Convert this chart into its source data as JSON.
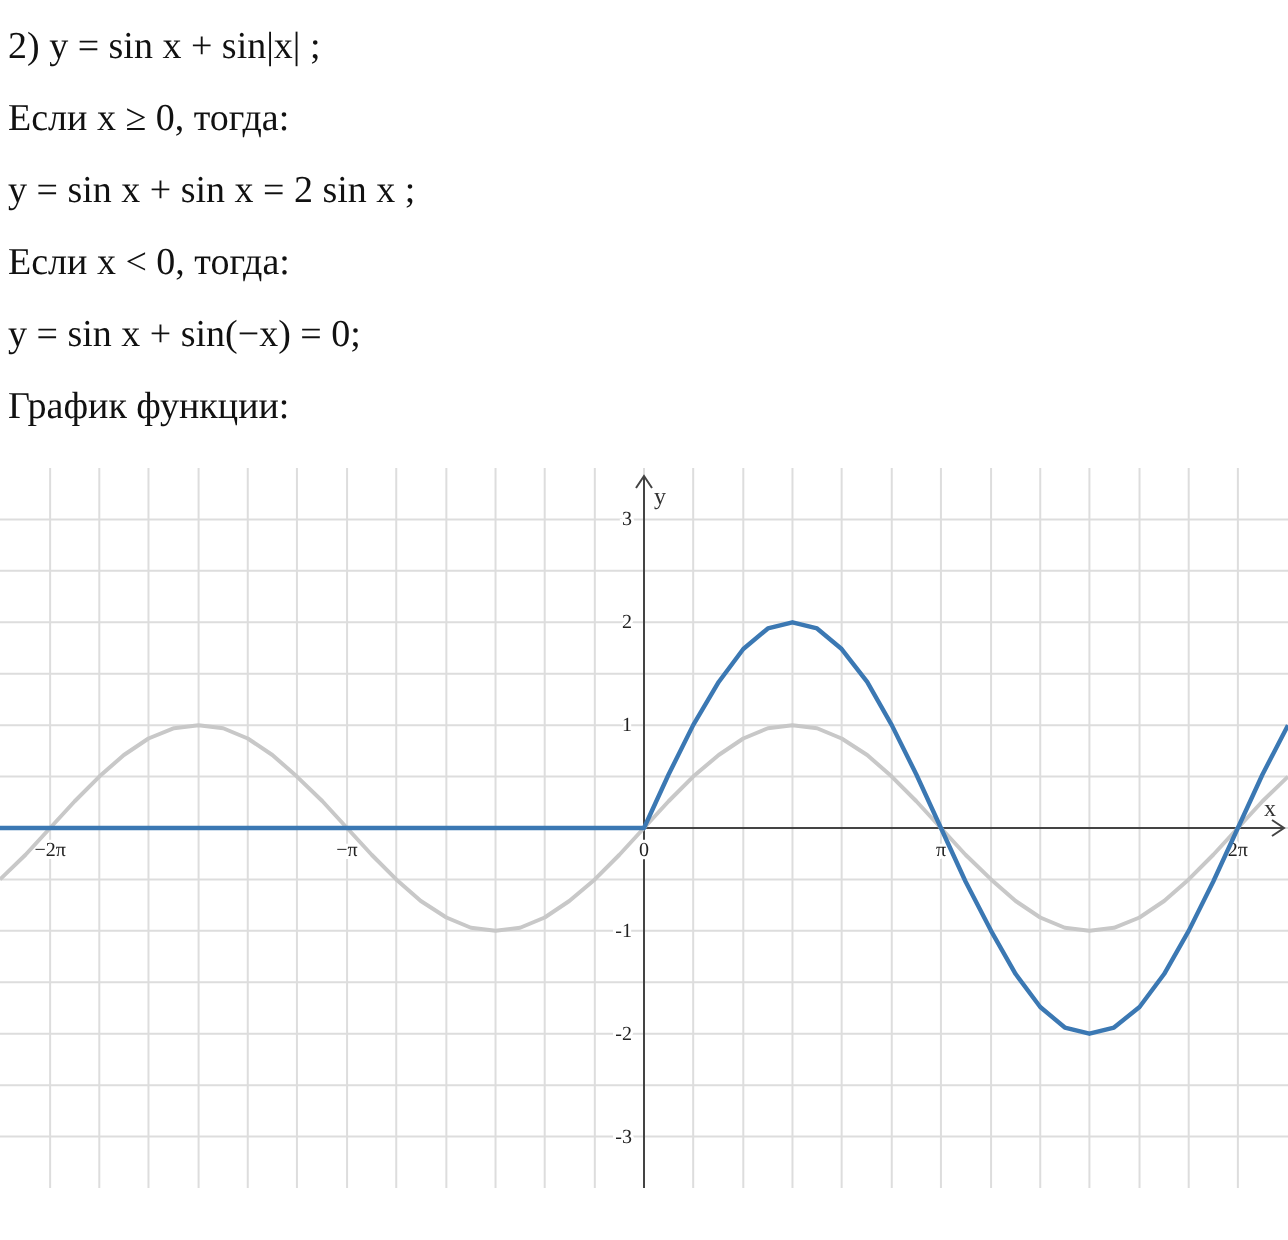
{
  "chart_data": {
    "type": "line",
    "title": "График функции:",
    "annotations": [
      "2) y = sin x + sin|x| ;",
      "Если x ≥ 0, тогда:",
      "y = sin x + sin x = 2 sin x ;",
      "Если x < 0, тогда:",
      "y = sin x + sin(−x) = 0;"
    ],
    "xlabel": "x",
    "ylabel": "y",
    "x": [
      -6.81,
      -6.54,
      -6.28,
      -6.02,
      -5.76,
      -5.5,
      -5.24,
      -4.97,
      -4.71,
      -4.45,
      -4.19,
      -3.93,
      -3.67,
      -3.4,
      -3.14,
      -2.88,
      -2.62,
      -2.36,
      -2.09,
      -1.83,
      -1.57,
      -1.31,
      -1.05,
      -0.79,
      -0.52,
      -0.26,
      0,
      0.26,
      0.52,
      0.79,
      1.05,
      1.31,
      1.57,
      1.83,
      2.09,
      2.36,
      2.62,
      2.88,
      3.14,
      3.4,
      3.67,
      3.93,
      4.19,
      4.45,
      4.71,
      4.97,
      5.24,
      5.5,
      5.76,
      6.02,
      6.28,
      6.54,
      6.81
    ],
    "series": [
      {
        "color": "#c8c8c8",
        "values": [
          -0.5,
          -0.26,
          0,
          0.26,
          0.5,
          0.71,
          0.87,
          0.97,
          1,
          0.97,
          0.87,
          0.71,
          0.5,
          0.26,
          0,
          -0.26,
          -0.5,
          -0.71,
          -0.87,
          -0.97,
          -1,
          -0.97,
          -0.87,
          -0.71,
          -0.5,
          -0.26,
          0,
          0.26,
          0.5,
          0.71,
          0.87,
          0.97,
          1,
          0.97,
          0.87,
          0.71,
          0.5,
          0.26,
          0,
          -0.26,
          -0.5,
          -0.71,
          -0.87,
          -0.97,
          -1,
          -0.97,
          -0.87,
          -0.71,
          -0.5,
          -0.26,
          0,
          0.26,
          0.5
        ]
      },
      {
        "color": "#3b78b3",
        "values": [
          0,
          0,
          0,
          0,
          0,
          0,
          0,
          0,
          0,
          0,
          0,
          0,
          0,
          0,
          0,
          0,
          0,
          0,
          0,
          0,
          0,
          0,
          0,
          0,
          0,
          0,
          0,
          0.52,
          1,
          1.42,
          1.74,
          1.94,
          2,
          1.94,
          1.74,
          1.42,
          1,
          0.52,
          0,
          -0.52,
          -1,
          -1.42,
          -1.74,
          -1.94,
          -2,
          -1.94,
          -1.74,
          -1.42,
          -1,
          -0.52,
          0,
          0.52,
          1
        ]
      }
    ],
    "xlim": [
      -6.81,
      6.81
    ],
    "ylim": [
      -3.5,
      3.5
    ],
    "xticks": [
      {
        "value": -6.28,
        "label": "−2π"
      },
      {
        "value": -5.76,
        "label": null
      },
      {
        "value": -5.24,
        "label": null
      },
      {
        "value": -4.71,
        "label": null
      },
      {
        "value": -4.19,
        "label": null
      },
      {
        "value": -3.67,
        "label": null
      },
      {
        "value": -3.14,
        "label": "−π"
      },
      {
        "value": -2.62,
        "label": null
      },
      {
        "value": -2.09,
        "label": null
      },
      {
        "value": -1.57,
        "label": null
      },
      {
        "value": -1.05,
        "label": null
      },
      {
        "value": -0.52,
        "label": null
      },
      0,
      {
        "value": 0.52,
        "label": null
      },
      {
        "value": 1.05,
        "label": null
      },
      {
        "value": 1.57,
        "label": null
      },
      {
        "value": 2.09,
        "label": null
      },
      {
        "value": 2.62,
        "label": null
      },
      {
        "value": 3.14,
        "label": "π"
      },
      {
        "value": 3.67,
        "label": null
      },
      {
        "value": 4.19,
        "label": null
      },
      {
        "value": 4.71,
        "label": null
      },
      {
        "value": 5.24,
        "label": null
      },
      {
        "value": 5.76,
        "label": null
      },
      {
        "value": 6.28,
        "label": "2π"
      }
    ],
    "yticks": [
      -3,
      {
        "value": -2.5,
        "label": null
      },
      -2,
      {
        "value": -1.5,
        "label": null
      },
      -1,
      {
        "value": -0.5,
        "label": null
      },
      {
        "value": 0,
        "label": null
      },
      {
        "value": 0.5,
        "label": null
      },
      1,
      {
        "value": 1.5,
        "label": null
      },
      2,
      {
        "value": 2.5,
        "label": null
      },
      3
    ],
    "grid": true,
    "marker": "none",
    "line_style": "solid"
  }
}
